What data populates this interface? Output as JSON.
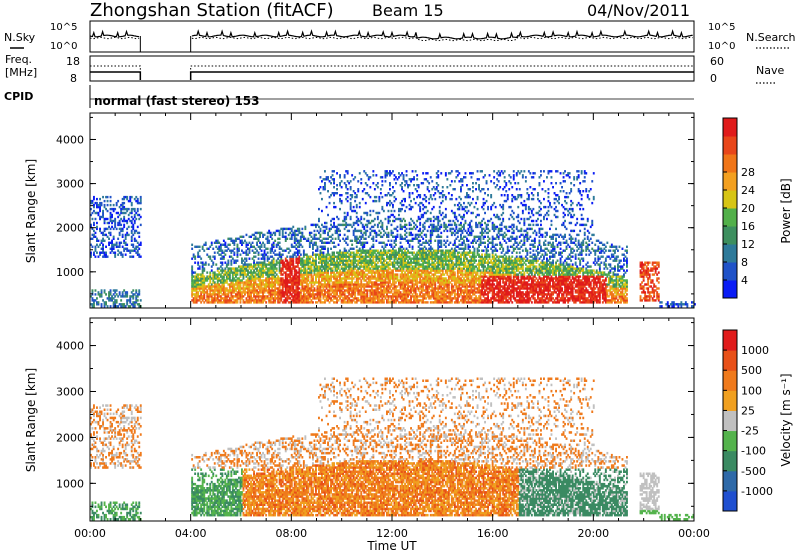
{
  "header": {
    "title": "Zhongshan Station (fitACF)",
    "beam": "Beam 15",
    "date": "04/Nov/2011"
  },
  "status_panels": {
    "nsky_label": "N.Sky",
    "nsearch_label": "N.Search",
    "freq_label_line1": "Freq.",
    "freq_label_line2": "[MHz]",
    "nave_label": "Nave",
    "cpid_label": "CPID",
    "cpid_text": "normal (fast stereo) 153",
    "noise_ticks_left": [
      "10^5",
      "10^0"
    ],
    "noise_ticks_right": [
      "10^5",
      "10^0"
    ],
    "freq_ticks": [
      "18",
      "8"
    ],
    "nave_ticks": [
      "60",
      "0"
    ]
  },
  "chart_data": [
    {
      "type": "heatmap",
      "name": "power",
      "ylabel": "Slant Range [km]",
      "ylim": [
        180,
        4600
      ],
      "yticks": [
        "1000",
        "2000",
        "3000",
        "4000"
      ],
      "xlim": [
        0,
        24
      ],
      "colorbar_label": "Power [dB]",
      "colorbar_ticks": [
        "4",
        "8",
        "12",
        "16",
        "20",
        "24",
        "28"
      ],
      "colorbar_colors": [
        "#0a1cf5",
        "#1f52c8",
        "#2e7a9a",
        "#3d8f5f",
        "#52b04a",
        "#d7c515",
        "#f3a020",
        "#f07518",
        "#e8461a",
        "#e01b1b"
      ],
      "data_gaps_ut": [
        [
          2.0,
          4.0
        ]
      ]
    },
    {
      "type": "heatmap",
      "name": "velocity",
      "ylabel": "Slant Range [km]",
      "ylim": [
        180,
        4600
      ],
      "yticks": [
        "1000",
        "2000",
        "3000",
        "4000"
      ],
      "xlim": [
        0,
        24
      ],
      "xticks": [
        "00:00",
        "04:00",
        "08:00",
        "12:00",
        "16:00",
        "20:00",
        "00:00"
      ],
      "xlabel": "Time UT",
      "colorbar_label": "Velocity [m s⁻¹]",
      "colorbar_ticks": [
        "1000",
        "500",
        "100",
        "25",
        "-25",
        "-100",
        "-500",
        "-1000"
      ],
      "colorbar_colors": [
        "#1f4fd0",
        "#2e69a8",
        "#3a8a62",
        "#54b34c",
        "#c0c0c0",
        "#f0a020",
        "#ef7a1c",
        "#e85018",
        "#e01b1b"
      ],
      "data_gaps_ut": [
        [
          2.0,
          4.0
        ]
      ]
    }
  ],
  "colors": {
    "axis": "#000000",
    "background": "#ffffff"
  }
}
